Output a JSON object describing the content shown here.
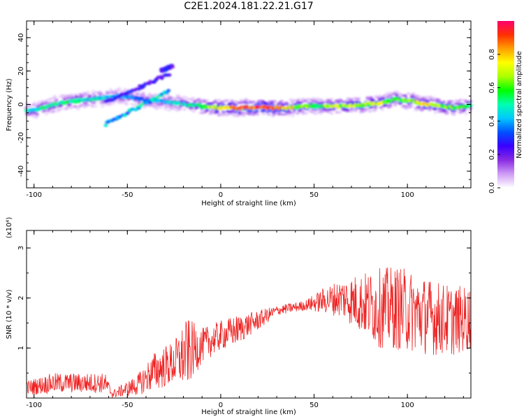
{
  "title": "C2E1.2024.181.22.21.G17",
  "chart_data": [
    {
      "type": "heatmap",
      "xlabel": "Height of straight line (km)",
      "ylabel": "Frequency (Hz)",
      "xlim": [
        -104,
        134
      ],
      "ylim": [
        -50,
        50
      ],
      "xticks": [
        -100,
        -50,
        0,
        50,
        100
      ],
      "yticks": [
        -40,
        -20,
        0,
        20,
        40
      ],
      "colorbar": {
        "label": "Normalized spectral amplitude",
        "range": [
          0.0,
          1.0
        ],
        "ticks": [
          "0.0",
          "0.2",
          "0.4",
          "0.6",
          "0.8"
        ],
        "colors": [
          "#ffffff",
          "#cf9cf5",
          "#8a2be2",
          "#3a00ff",
          "#0050ff",
          "#00c8ff",
          "#00ffb0",
          "#00ff00",
          "#aaff00",
          "#ffff00",
          "#ffa000",
          "#ff3000",
          "#ff0070"
        ]
      },
      "main_trace": [
        {
          "x": -104,
          "f": -4,
          "a": 0.45
        },
        {
          "x": -98,
          "f": -3,
          "a": 0.5
        },
        {
          "x": -92,
          "f": -1,
          "a": 0.5
        },
        {
          "x": -85,
          "f": 1,
          "a": 0.5
        },
        {
          "x": -78,
          "f": 2,
          "a": 0.55
        },
        {
          "x": -70,
          "f": 3,
          "a": 0.5
        },
        {
          "x": -62,
          "f": 4,
          "a": 0.45
        },
        {
          "x": -55,
          "f": 5,
          "a": 0.4
        },
        {
          "x": -48,
          "f": 4,
          "a": 0.4
        },
        {
          "x": -42,
          "f": 3,
          "a": 0.35
        },
        {
          "x": -34,
          "f": 2,
          "a": 0.4
        },
        {
          "x": -26,
          "f": 1,
          "a": 0.45
        },
        {
          "x": -18,
          "f": 0,
          "a": 0.5
        },
        {
          "x": -10,
          "f": -1,
          "a": 0.6
        },
        {
          "x": -2,
          "f": -2,
          "a": 0.75
        },
        {
          "x": 6,
          "f": -2,
          "a": 0.85
        },
        {
          "x": 14,
          "f": -2,
          "a": 0.95
        },
        {
          "x": 22,
          "f": -2,
          "a": 0.95
        },
        {
          "x": 30,
          "f": -2,
          "a": 0.9
        },
        {
          "x": 38,
          "f": -2,
          "a": 0.75
        },
        {
          "x": 46,
          "f": -1,
          "a": 0.65
        },
        {
          "x": 54,
          "f": -1,
          "a": 0.6
        },
        {
          "x": 62,
          "f": -1,
          "a": 0.7
        },
        {
          "x": 70,
          "f": -1,
          "a": 0.7
        },
        {
          "x": 78,
          "f": 0,
          "a": 0.65
        },
        {
          "x": 86,
          "f": 1,
          "a": 0.7
        },
        {
          "x": 94,
          "f": 3,
          "a": 0.6
        },
        {
          "x": 102,
          "f": 2,
          "a": 0.65
        },
        {
          "x": 110,
          "f": 0,
          "a": 0.75
        },
        {
          "x": 118,
          "f": -1,
          "a": 0.7
        },
        {
          "x": 126,
          "f": -2,
          "a": 0.6
        },
        {
          "x": 134,
          "f": -1,
          "a": 0.55
        }
      ],
      "branches": [
        {
          "from": [
            -62,
            -12
          ],
          "to": [
            -28,
            8
          ],
          "a": 0.4
        },
        {
          "from": [
            -62,
            1
          ],
          "to": [
            -28,
            18
          ],
          "a": 0.25
        },
        {
          "from": [
            -32,
            20
          ],
          "to": [
            -26,
            23
          ],
          "a": 0.25
        }
      ]
    },
    {
      "type": "line",
      "xlabel": "Height of straight line (km)",
      "ylabel": "SNR (10 * v/v)",
      "multiplier": "(x10⁴)",
      "xlim": [
        -104,
        134
      ],
      "ylim": [
        0,
        3.35
      ],
      "xticks": [
        -100,
        -50,
        0,
        50,
        100
      ],
      "yticks": [
        1,
        2,
        3
      ],
      "color": "#ee2222",
      "envelope": [
        {
          "x": -104,
          "base": 0.2,
          "amp": 0.15
        },
        {
          "x": -90,
          "base": 0.3,
          "amp": 0.2
        },
        {
          "x": -75,
          "base": 0.3,
          "amp": 0.2
        },
        {
          "x": -62,
          "base": 0.3,
          "amp": 0.2
        },
        {
          "x": -58,
          "base": 0.08,
          "amp": 0.08
        },
        {
          "x": -45,
          "base": 0.25,
          "amp": 0.2
        },
        {
          "x": -35,
          "base": 0.55,
          "amp": 0.4
        },
        {
          "x": -25,
          "base": 0.7,
          "amp": 0.45
        },
        {
          "x": -18,
          "base": 0.9,
          "amp": 0.7
        },
        {
          "x": -10,
          "base": 1.05,
          "amp": 0.35
        },
        {
          "x": 0,
          "base": 1.25,
          "amp": 0.3
        },
        {
          "x": 8,
          "base": 1.35,
          "amp": 0.3
        },
        {
          "x": 20,
          "base": 1.55,
          "amp": 0.2
        },
        {
          "x": 30,
          "base": 1.75,
          "amp": 0.1
        },
        {
          "x": 45,
          "base": 1.85,
          "amp": 0.1
        },
        {
          "x": 55,
          "base": 1.95,
          "amp": 0.25
        },
        {
          "x": 65,
          "base": 2.0,
          "amp": 0.4
        },
        {
          "x": 75,
          "base": 1.9,
          "amp": 0.6
        },
        {
          "x": 85,
          "base": 1.8,
          "amp": 0.8
        },
        {
          "x": 95,
          "base": 1.8,
          "amp": 0.85
        },
        {
          "x": 105,
          "base": 1.7,
          "amp": 0.8
        },
        {
          "x": 115,
          "base": 1.6,
          "amp": 0.75
        },
        {
          "x": 125,
          "base": 1.55,
          "amp": 0.7
        },
        {
          "x": 134,
          "base": 1.6,
          "amp": 0.65
        }
      ]
    }
  ]
}
